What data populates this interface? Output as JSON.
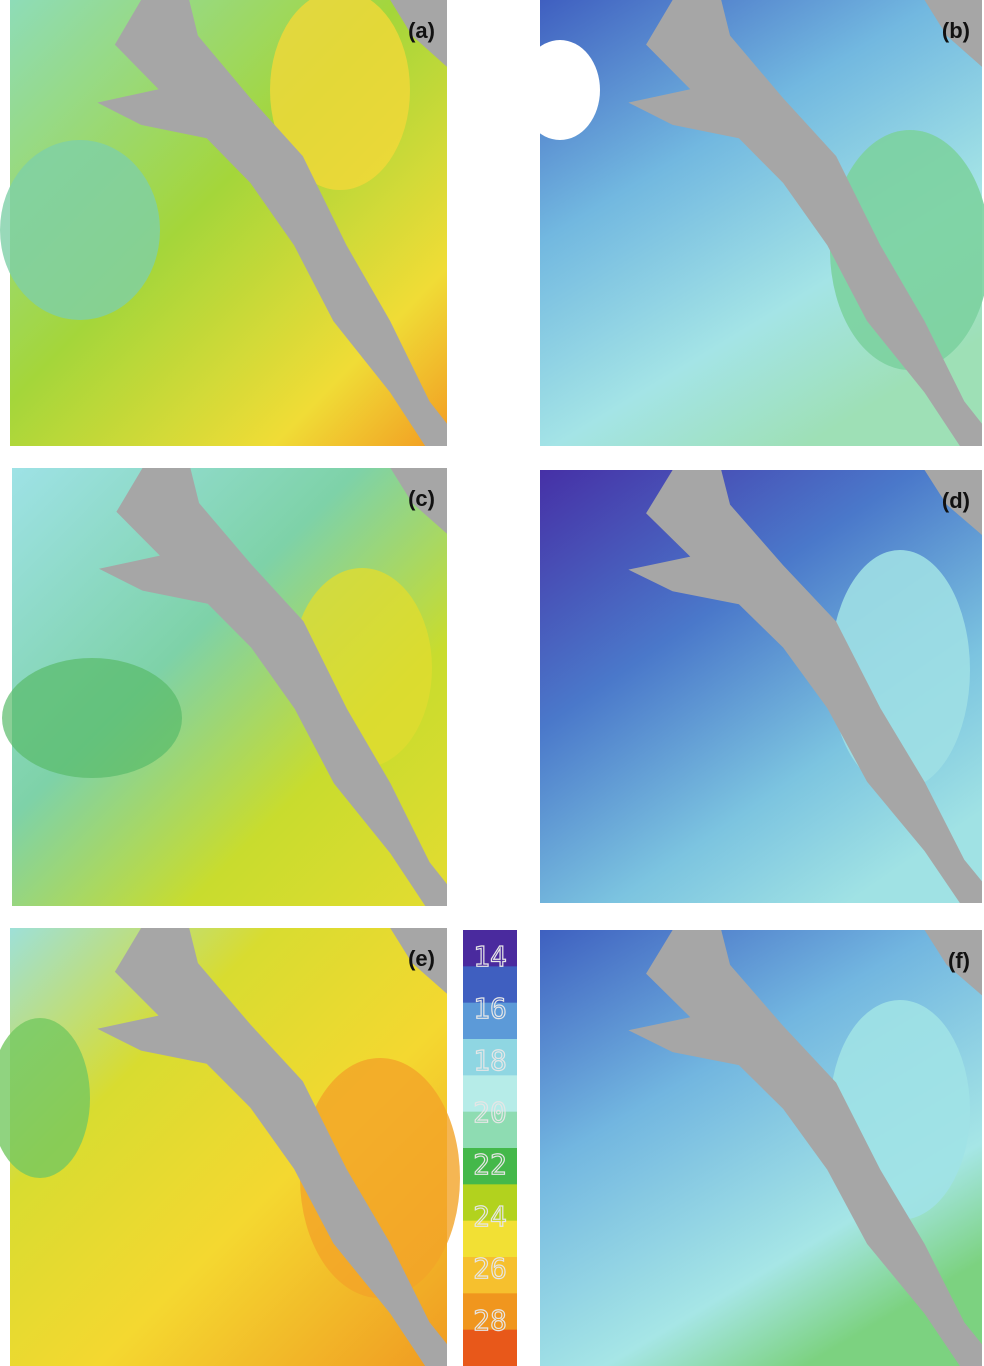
{
  "panels": [
    {
      "label": "(a)"
    },
    {
      "label": "(b)"
    },
    {
      "label": "(c)"
    },
    {
      "label": "(d)"
    },
    {
      "label": "(e)"
    },
    {
      "label": "(f)"
    }
  ],
  "colorbar": {
    "labels": [
      "14",
      "16",
      "18",
      "20",
      "22",
      "24",
      "26",
      "28"
    ],
    "colors": [
      "#4a2a9e",
      "#3f5fc0",
      "#5c9ad8",
      "#8fd6e2",
      "#b6ece8",
      "#8edcb2",
      "#44b84a",
      "#b2d21e",
      "#f2e034",
      "#f6c02e",
      "#f0961e",
      "#e8581a"
    ]
  }
}
